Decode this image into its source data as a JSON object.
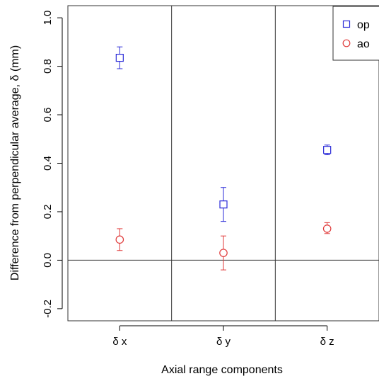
{
  "chart_data": {
    "type": "scatter",
    "title": "",
    "xlabel": "Axial range components",
    "ylabel": "Difference from perpendicular average, δ (mm)",
    "categories": [
      "δ x",
      "δ y",
      "δ z"
    ],
    "ylim": [
      -0.25,
      1.05
    ],
    "yticks": [
      -0.2,
      0.0,
      0.2,
      0.4,
      0.6,
      0.8,
      1.0
    ],
    "ytick_labels": [
      "-0.2",
      "0.0",
      "0.2",
      "0.4",
      "0.6",
      "0.8",
      "1.0"
    ],
    "grid": false,
    "reference_line_y": 0,
    "panel_dividers": true,
    "legend": {
      "placement": "top-right"
    },
    "series": [
      {
        "name": "op",
        "marker": "open-square",
        "color": "#2a2ad8",
        "values": [
          0.835,
          0.23,
          0.455
        ],
        "lower": [
          0.79,
          0.16,
          0.435
        ],
        "upper": [
          0.88,
          0.3,
          0.475
        ]
      },
      {
        "name": "ao",
        "marker": "open-circle",
        "color": "#e03a3a",
        "values": [
          0.085,
          0.03,
          0.13
        ],
        "lower": [
          0.04,
          -0.04,
          0.11
        ],
        "upper": [
          0.13,
          0.1,
          0.155
        ]
      }
    ]
  }
}
